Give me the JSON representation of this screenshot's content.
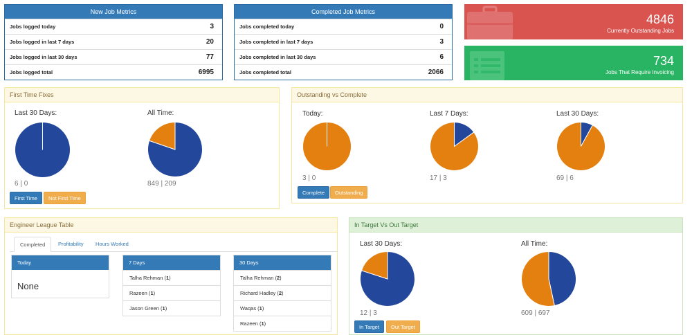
{
  "new_job_metrics": {
    "title": "New Job Metrics",
    "rows": [
      {
        "label": "Jobs logged today",
        "value": "3"
      },
      {
        "label": "Jobs logged in last 7 days",
        "value": "20"
      },
      {
        "label": "Jobs logged in last 30 days",
        "value": "77"
      },
      {
        "label": "Jobs logged total",
        "value": "6995"
      }
    ]
  },
  "completed_job_metrics": {
    "title": "Completed Job Metrics",
    "rows": [
      {
        "label": "Jobs completed today",
        "value": "0"
      },
      {
        "label": "Jobs completed in last 7 days",
        "value": "3"
      },
      {
        "label": "Jobs completed in last 30 days",
        "value": "6"
      },
      {
        "label": "Jobs completed total",
        "value": "2066"
      }
    ]
  },
  "tiles": {
    "outstanding": {
      "number": "4846",
      "label": "Currently Outstanding Jobs",
      "color": "#d9534f",
      "icon": "briefcase-icon"
    },
    "invoicing": {
      "number": "734",
      "label": "Jobs That Require Invoicing",
      "color": "#28b463",
      "icon": "invoice-icon"
    }
  },
  "first_time_fixes": {
    "title": "First Time Fixes",
    "charts": [
      {
        "label": "Last 30 Days:",
        "counts": "6 | 0",
        "values": [
          6,
          0
        ]
      },
      {
        "label": "All Time:",
        "counts": "849 | 209",
        "values": [
          849,
          209
        ]
      }
    ],
    "buttons": {
      "primary": "First Time",
      "secondary": "Not First Time"
    }
  },
  "outstanding_vs_complete": {
    "title": "Outstanding vs Complete",
    "charts": [
      {
        "label": "Today:",
        "counts": "3 | 0",
        "values": [
          0,
          3
        ]
      },
      {
        "label": "Last 7 Days:",
        "counts": "17 | 3",
        "values": [
          3,
          17
        ]
      },
      {
        "label": "Last 30 Days:",
        "counts": "69 | 6",
        "values": [
          6,
          69
        ]
      }
    ],
    "buttons": {
      "primary": "Complete",
      "secondary": "Outstanding"
    }
  },
  "engineer_league": {
    "title": "Engineer League Table",
    "tabs": [
      "Completed",
      "Profitability",
      "Hours Worked"
    ],
    "active_tab": "Completed",
    "today": {
      "title": "Today",
      "empty": "None"
    },
    "seven_days": {
      "title": "7 Days",
      "rows": [
        {
          "name": "Talha Rehman",
          "count": "1"
        },
        {
          "name": "Razeen",
          "count": "1"
        },
        {
          "name": "Jason Green",
          "count": "1"
        }
      ]
    },
    "thirty_days": {
      "title": "30 Days",
      "rows": [
        {
          "name": "Talha Rehman",
          "count": "2"
        },
        {
          "name": "Richard Hadley",
          "count": "2"
        },
        {
          "name": "Waqas",
          "count": "1"
        },
        {
          "name": "Razeen",
          "count": "1"
        }
      ]
    }
  },
  "in_target": {
    "title": "In Target Vs Out Target",
    "charts": [
      {
        "label": "Last 30 Days:",
        "counts": "12 | 3",
        "values": [
          12,
          3
        ]
      },
      {
        "label": "All Time:",
        "counts": "609 | 697",
        "values": [
          609,
          697
        ]
      }
    ],
    "buttons": {
      "primary": "In Target",
      "secondary": "Out Target"
    }
  },
  "colors": {
    "blue": "#23479b",
    "orange": "#e3800f",
    "primary_button": "#337ab7",
    "secondary_button": "#f0ad4e"
  }
}
